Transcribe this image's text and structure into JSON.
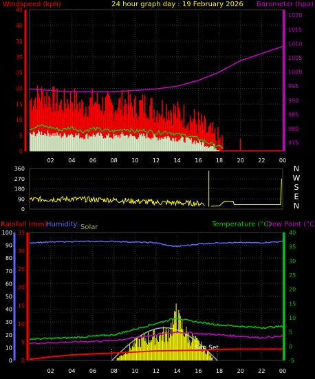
{
  "header": {
    "left_label": "Windspeed (kph)",
    "title": "24 hour graph day : 19 February 2026",
    "right_label": "Barometer (hpa)"
  },
  "colors": {
    "wind": "#ff0000",
    "baro": "#cc00cc",
    "dir": "#ffff00",
    "temp": "#00cc00",
    "dew": "#cc00cc",
    "rain": "#ff0000",
    "humidity": "#6666ff",
    "solar": "#ffff00",
    "solar_curve": "#aaaaaa",
    "title": "#ffff00"
  },
  "chart_data": [
    {
      "type": "line",
      "name": "wind-baro",
      "x_ticks": [
        "02",
        "04",
        "06",
        "08",
        "10",
        "12",
        "14",
        "16",
        "18",
        "20",
        "22",
        "00"
      ],
      "left_axis": {
        "label": "Windspeed (kph)",
        "ticks": [
          45,
          40,
          35,
          30,
          25,
          20,
          15,
          10,
          5,
          0
        ],
        "ylim": [
          0,
          45
        ]
      },
      "right_axis": {
        "label": "Barometer (hpa)",
        "ticks": [
          1020,
          1015,
          1010,
          1005,
          1000,
          995,
          990,
          985,
          980,
          975
        ],
        "ylim": [
          972,
          1022
        ]
      },
      "series": [
        {
          "name": "Windspeed (kph)",
          "x": [
            0,
            1,
            2,
            3,
            4,
            5,
            6,
            7,
            8,
            9,
            10,
            11,
            12,
            13,
            14,
            15,
            16,
            17,
            18
          ],
          "values": [
            16,
            18,
            17,
            15,
            17,
            14,
            16,
            15,
            14,
            16,
            14,
            15,
            13,
            14,
            12,
            11,
            9,
            6,
            3
          ]
        },
        {
          "name": "Barometer (hpa)",
          "x": [
            0,
            2,
            4,
            6,
            8,
            10,
            12,
            14,
            16,
            18,
            20,
            22,
            24
          ],
          "values": [
            994,
            993.5,
            993,
            993,
            993,
            993.5,
            994,
            995,
            997,
            1000,
            1004,
            1006.5,
            1009
          ]
        }
      ]
    },
    {
      "type": "line",
      "name": "wind-direction",
      "x_ticks": [
        "02",
        "04",
        "06",
        "08",
        "10",
        "12",
        "14",
        "16",
        "18",
        "20",
        "22",
        "00"
      ],
      "left_axis": {
        "ticks": [
          360,
          270,
          180,
          90,
          0
        ],
        "ylim": [
          0,
          360
        ]
      },
      "right_labels": [
        "N",
        "W",
        "S",
        "E",
        "N"
      ],
      "series": [
        {
          "name": "Direction",
          "x": [
            0,
            2,
            4,
            6,
            8,
            10,
            12,
            14,
            16,
            17,
            18,
            19,
            20,
            22,
            23.9,
            24
          ],
          "values": [
            85,
            90,
            88,
            82,
            80,
            78,
            60,
            55,
            45,
            340,
            30,
            70,
            40,
            40,
            40,
            270
          ]
        }
      ]
    },
    {
      "type": "line",
      "name": "rain-humidity-solar-temp",
      "labels": {
        "rainfall": "Rainfall (mm)",
        "humidity": "Humidity",
        "solar": "Solar",
        "temperature": "Temperature (°C)",
        "dewpoint": "Dew Point (°C)",
        "sunset": "Sun Set"
      },
      "x_ticks": [
        "02",
        "04",
        "06",
        "08",
        "10",
        "12",
        "14",
        "16",
        "18",
        "20",
        "22",
        "00"
      ],
      "left_axis": {
        "ticks": [
          100,
          90,
          80,
          70,
          60,
          50,
          40,
          30,
          20,
          10,
          0
        ],
        "ylim": [
          0,
          100
        ]
      },
      "left2_axis": {
        "ticks": [
          35,
          30,
          25,
          20,
          15,
          10,
          5,
          0
        ],
        "ylim": [
          0,
          35
        ]
      },
      "right_axis": {
        "ticks": [
          40,
          35,
          30,
          25,
          20,
          15,
          10,
          5,
          0,
          -5
        ],
        "ylim": [
          -5,
          40
        ]
      },
      "series": [
        {
          "name": "Humidity",
          "x": [
            0,
            4,
            8,
            12,
            13,
            14,
            15,
            16,
            18,
            20,
            22,
            24
          ],
          "values": [
            92,
            93,
            93,
            92,
            90,
            89,
            90,
            91,
            92,
            92,
            92,
            93
          ]
        },
        {
          "name": "Temperature (°C)",
          "x": [
            0,
            4,
            8,
            10,
            12,
            13,
            14,
            15,
            16,
            18,
            20,
            22,
            24
          ],
          "values": [
            2.5,
            3,
            4,
            6,
            8,
            9,
            10,
            9,
            8.5,
            7.5,
            7,
            6.5,
            7
          ]
        },
        {
          "name": "Dew Point (°C)",
          "x": [
            0,
            4,
            8,
            10,
            12,
            14,
            16,
            18,
            20,
            22,
            24
          ],
          "values": [
            1,
            1.5,
            2,
            3,
            4,
            5,
            4.5,
            4,
            3.5,
            3,
            3.5
          ]
        },
        {
          "name": "Rainfall (mm)",
          "x": [
            0,
            2,
            4,
            6,
            8,
            10,
            12,
            16,
            18,
            20,
            22,
            24
          ],
          "values": [
            0.3,
            1,
            1.5,
            1.8,
            2,
            2.3,
            2.6,
            2.8,
            3,
            3.1,
            3.1,
            3.1
          ]
        },
        {
          "name": "Solar",
          "x": [
            8,
            9,
            10,
            11,
            12,
            13,
            14,
            15,
            16,
            17,
            17.5
          ],
          "values": [
            0,
            3,
            7,
            9,
            10,
            11,
            17,
            10,
            7,
            3,
            0
          ]
        }
      ]
    }
  ]
}
